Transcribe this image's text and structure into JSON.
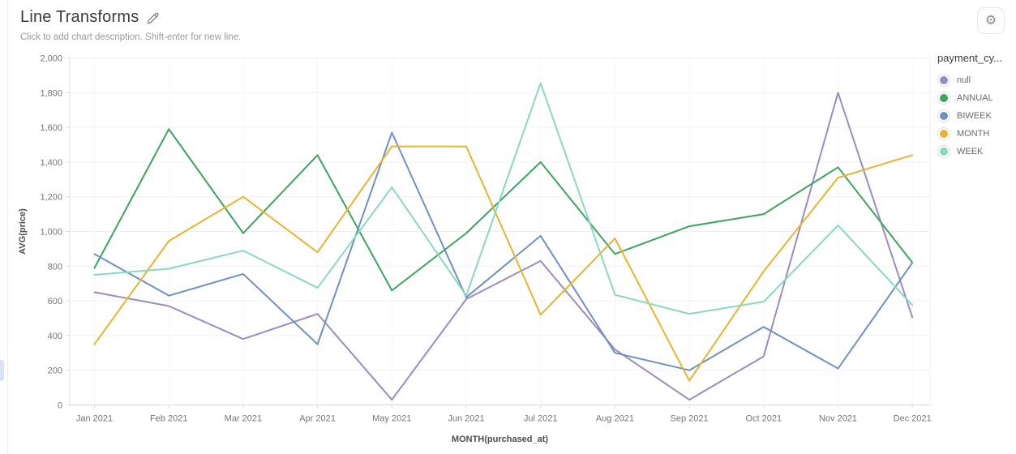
{
  "header": {
    "title": "Line Transforms",
    "subtitle": "Click to add chart description. Shift-enter for new line."
  },
  "toolbar": {
    "settings_icon": "gear-icon",
    "settings_glyph": "⚙"
  },
  "legend": {
    "title": "payment_cy...",
    "items": [
      {
        "label": "null",
        "color": "#9d8bc0"
      },
      {
        "label": "ANNUAL",
        "color": "#3da35f"
      },
      {
        "label": "BIWEEK",
        "color": "#7090c4"
      },
      {
        "label": "MONTH",
        "color": "#e8b430"
      },
      {
        "label": "WEEK",
        "color": "#8bd7bf"
      }
    ]
  },
  "chart_data": {
    "type": "line",
    "title": "Line Transforms",
    "xlabel": "MONTH(purchased_at)",
    "ylabel": "AVG(price)",
    "ylim": [
      0,
      2000
    ],
    "ytick_step": 200,
    "grid": "on",
    "legend_position": "right",
    "categories": [
      "Jan 2021",
      "Feb 2021",
      "Mar 2021",
      "Apr 2021",
      "May 2021",
      "Jun 2021",
      "Jul 2021",
      "Aug 2021",
      "Sep 2021",
      "Oct 2021",
      "Nov 2021",
      "Dec 2021"
    ],
    "series": [
      {
        "name": "null",
        "color": "#9d8bc0",
        "values": [
          650,
          570,
          380,
          525,
          30,
          610,
          830,
          320,
          30,
          280,
          1800,
          505
        ]
      },
      {
        "name": "ANNUAL",
        "color": "#3da35f",
        "values": [
          790,
          1590,
          990,
          1440,
          660,
          990,
          1400,
          870,
          1030,
          1100,
          1370,
          820
        ]
      },
      {
        "name": "BIWEEK",
        "color": "#7090c4",
        "values": [
          870,
          630,
          755,
          350,
          1570,
          620,
          975,
          300,
          200,
          450,
          210,
          820
        ]
      },
      {
        "name": "MONTH",
        "color": "#e8b430",
        "values": [
          350,
          945,
          1200,
          880,
          1490,
          1490,
          520,
          960,
          140,
          770,
          1310,
          1440
        ]
      },
      {
        "name": "WEEK",
        "color": "#8bd7bf",
        "values": [
          750,
          785,
          890,
          675,
          1255,
          630,
          1855,
          635,
          525,
          595,
          1035,
          575
        ]
      }
    ]
  }
}
